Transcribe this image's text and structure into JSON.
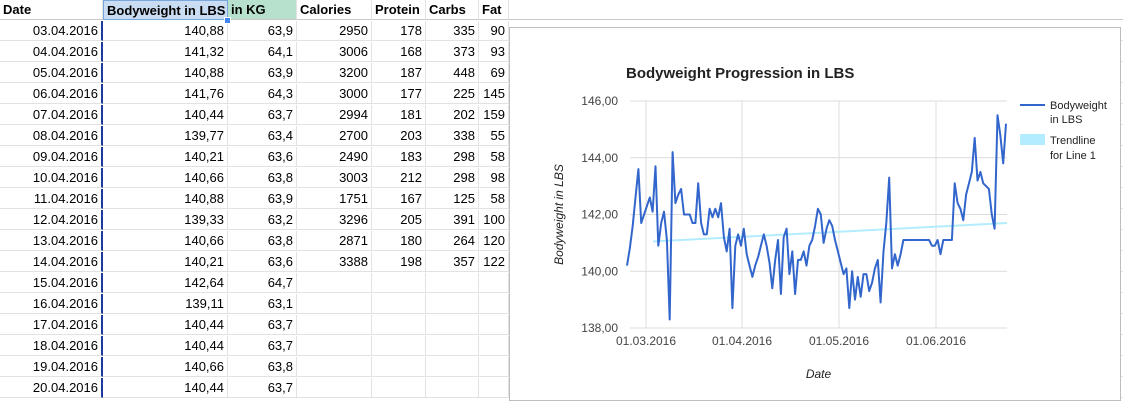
{
  "sheet": {
    "headers": [
      "Date",
      "Bodyweight in LBS",
      "in KG",
      "Calories",
      "Protein",
      "Carbs",
      "Fat"
    ],
    "rows": [
      [
        "03.04.2016",
        "140,88",
        "63,9",
        "2950",
        "178",
        "335",
        "90"
      ],
      [
        "04.04.2016",
        "141,32",
        "64,1",
        "3006",
        "168",
        "373",
        "93"
      ],
      [
        "05.04.2016",
        "140,88",
        "63,9",
        "3200",
        "187",
        "448",
        "69"
      ],
      [
        "06.04.2016",
        "141,76",
        "64,3",
        "3000",
        "177",
        "225",
        "145"
      ],
      [
        "07.04.2016",
        "140,44",
        "63,7",
        "2994",
        "181",
        "202",
        "159"
      ],
      [
        "08.04.2016",
        "139,77",
        "63,4",
        "2700",
        "203",
        "338",
        "55"
      ],
      [
        "09.04.2016",
        "140,21",
        "63,6",
        "2490",
        "183",
        "298",
        "58"
      ],
      [
        "10.04.2016",
        "140,66",
        "63,8",
        "3003",
        "212",
        "298",
        "98"
      ],
      [
        "11.04.2016",
        "140,88",
        "63,9",
        "1751",
        "167",
        "125",
        "58"
      ],
      [
        "12.04.2016",
        "139,33",
        "63,2",
        "3296",
        "205",
        "391",
        "100"
      ],
      [
        "13.04.2016",
        "140,66",
        "63,8",
        "2871",
        "180",
        "264",
        "120"
      ],
      [
        "14.04.2016",
        "140,21",
        "63,6",
        "3388",
        "198",
        "357",
        "122"
      ],
      [
        "15.04.2016",
        "142,64",
        "64,7",
        "",
        "",
        "",
        ""
      ],
      [
        "16.04.2016",
        "139,11",
        "63,1",
        "",
        "",
        "",
        ""
      ],
      [
        "17.04.2016",
        "140,44",
        "63,7",
        "",
        "",
        "",
        ""
      ],
      [
        "18.04.2016",
        "140,44",
        "63,7",
        "",
        "",
        "",
        ""
      ],
      [
        "19.04.2016",
        "140,66",
        "63,8",
        "",
        "",
        "",
        ""
      ],
      [
        "20.04.2016",
        "140,44",
        "63,7",
        "",
        "",
        "",
        ""
      ]
    ]
  },
  "chart_data": {
    "type": "line",
    "title": "Bodyweight Progression in LBS",
    "xlabel": "Date",
    "ylabel": "Bodyweight in LBS",
    "ylim": [
      138,
      146
    ],
    "yticks": [
      "138,00",
      "140,00",
      "142,00",
      "144,00",
      "146,00"
    ],
    "xticks": [
      "01.03.2016",
      "01.04.2016",
      "01.05.2016",
      "01.06.2016"
    ],
    "legend_position": "right",
    "grid": true,
    "series": [
      {
        "name": "Bodyweight in LBS",
        "color": "#3366cc",
        "values": [
          140.2,
          140.8,
          141.6,
          142.6,
          143.6,
          141.7,
          142.0,
          142.3,
          142.6,
          142.1,
          143.7,
          140.9,
          141.7,
          142.1,
          141.1,
          138.3,
          144.2,
          142.4,
          142.7,
          142.9,
          142.0,
          142.0,
          142.0,
          141.7,
          141.7,
          143.1,
          141.7,
          141.3,
          141.3,
          142.2,
          141.9,
          142.2,
          141.9,
          142.4,
          141.2,
          140.7,
          141.5,
          138.7,
          140.9,
          141.3,
          140.9,
          141.5,
          140.6,
          140.2,
          139.8,
          140.2,
          140.5,
          140.9,
          141.3,
          140.9,
          140.3,
          139.4,
          140.4,
          141.1,
          139.2,
          141.2,
          141.5,
          139.9,
          140.7,
          139.2,
          140.4,
          140.4,
          140.7,
          140.2,
          140.9,
          141.1,
          141.6,
          142.2,
          142.0,
          141.0,
          141.5,
          141.8,
          141.6,
          141.1,
          140.7,
          140.3,
          139.9,
          140.1,
          138.7,
          140.0,
          139.0,
          139.8,
          139.1,
          139.9,
          139.9,
          139.3,
          139.6,
          140.1,
          140.4,
          138.9,
          140.7,
          141.7,
          143.3,
          140.1,
          140.6,
          140.2,
          140.6,
          141.1,
          141.1,
          141.1,
          141.1,
          141.1,
          141.1,
          141.1,
          141.1,
          141.1,
          141.1,
          140.9,
          140.9,
          141.1,
          140.6,
          141.1,
          141.1,
          141.1,
          141.1,
          143.1,
          142.4,
          142.2,
          141.8,
          142.7,
          143.1,
          143.5,
          144.7,
          143.2,
          143.5,
          143.1,
          143.0,
          142.9,
          142.0,
          141.5,
          145.5,
          144.8,
          143.8,
          145.2
        ]
      },
      {
        "name": "Trendline for Line 1",
        "color": "#b4ecff",
        "values": [
          141.05,
          141.7
        ]
      }
    ]
  }
}
